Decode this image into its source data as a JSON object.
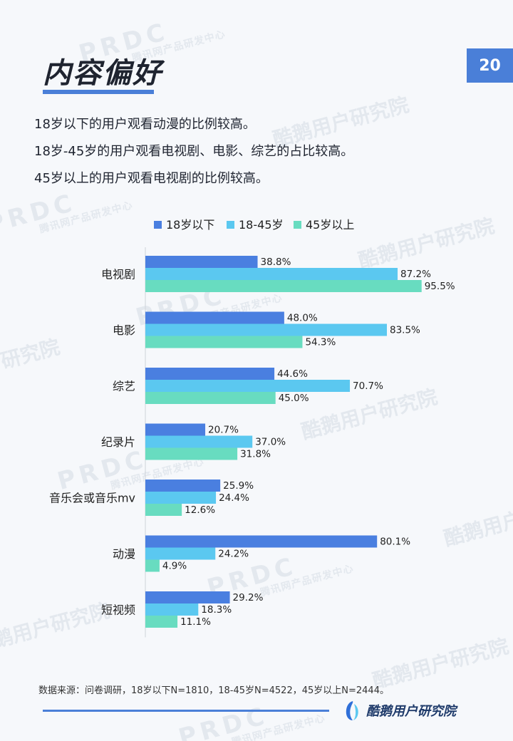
{
  "header": {
    "title": "内容偏好",
    "page_number": "20"
  },
  "description": [
    "18岁以下的用户观看动漫的比例较高。",
    "18岁-45岁的用户观看电视剧、电影、综艺的占比较高。",
    "45岁以上的用户观看电视剧的比例较高。"
  ],
  "chart_data": {
    "type": "bar",
    "orientation": "horizontal",
    "categories": [
      "电视剧",
      "电影",
      "综艺",
      "纪录片",
      "音乐会或音乐mv",
      "动漫",
      "短视频"
    ],
    "series": [
      {
        "name": "18岁以下",
        "color": "#4a7fe0",
        "values": [
          38.8,
          48.0,
          44.6,
          20.7,
          25.9,
          80.1,
          29.2
        ]
      },
      {
        "name": "18-45岁",
        "color": "#5bc8f0",
        "values": [
          87.2,
          83.5,
          70.7,
          37.0,
          24.4,
          24.2,
          18.3
        ]
      },
      {
        "name": "45岁以上",
        "color": "#68dcc0",
        "values": [
          95.5,
          54.3,
          45.0,
          31.8,
          12.6,
          4.9,
          11.1
        ]
      }
    ],
    "value_suffix": "%",
    "xlim": [
      0,
      100
    ],
    "legend": "top",
    "grid": false
  },
  "footer": {
    "source": "数据来源：问卷调研，18岁以下N=1810，18-45岁N=4522，45岁以上N=2444。",
    "brand": "酷鹅用户研究院"
  },
  "watermark": {
    "brand_en": "PRDC",
    "brand_en_sub": "腾讯网产品研发中心",
    "brand_cn": "酷鹅用户研究院"
  }
}
